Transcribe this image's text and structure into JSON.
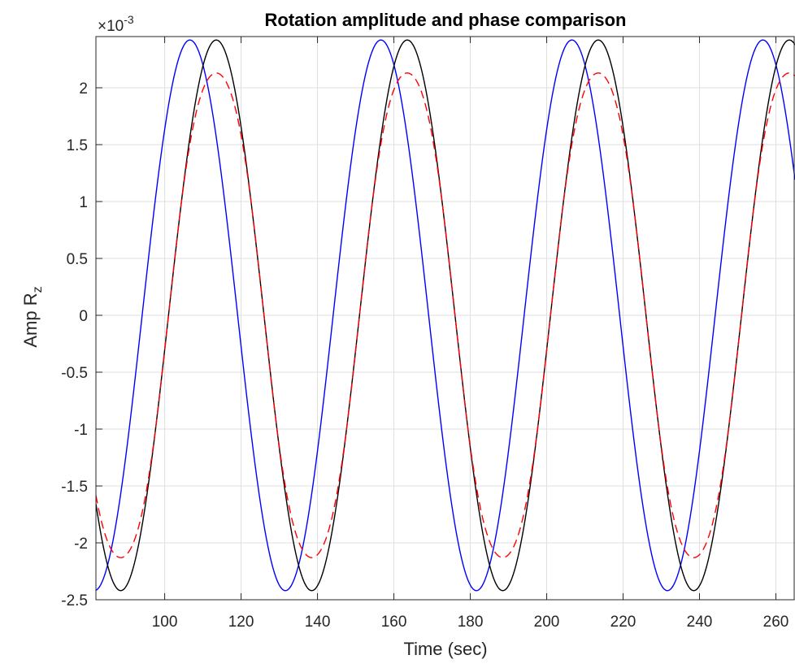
{
  "chart_data": {
    "type": "line",
    "title": "Rotation amplitude and phase comparison",
    "xlabel": "Time (sec)",
    "ylabel": {
      "main": "Amp R",
      "sub": "z"
    },
    "exponent": {
      "prefix": "×10",
      "power": "-3"
    },
    "xlim": [
      82,
      265
    ],
    "ylim": [
      -2.5,
      2.45
    ],
    "grid": true,
    "x_ticks": [
      100,
      120,
      140,
      160,
      180,
      200,
      220,
      240,
      260
    ],
    "y_ticks": [
      -2.5,
      -2,
      -1.5,
      -1,
      -0.5,
      0,
      0.5,
      1,
      1.5,
      2
    ],
    "y_tick_labels": [
      "-2.5",
      "-2",
      "-1.5",
      "-1",
      "-0.5",
      "0",
      "0.5",
      "1",
      "1.5",
      "2"
    ],
    "series": [
      {
        "color": "#0000ff",
        "style": "solid",
        "amplitude": 2.42,
        "period": 50,
        "peak_times": [
          106.6,
          156.6,
          206.6,
          256.6
        ]
      },
      {
        "color": "#000000",
        "style": "solid",
        "amplitude": 2.42,
        "period": 50,
        "peak_times": [
          113.5,
          163.5,
          213.5,
          263.5
        ]
      },
      {
        "color": "#ff0000",
        "style": "dashed",
        "amplitude": 2.13,
        "period": 50,
        "peak_times": [
          113.5,
          163.5,
          213.5,
          263.5
        ],
        "flattened": true
      }
    ]
  }
}
